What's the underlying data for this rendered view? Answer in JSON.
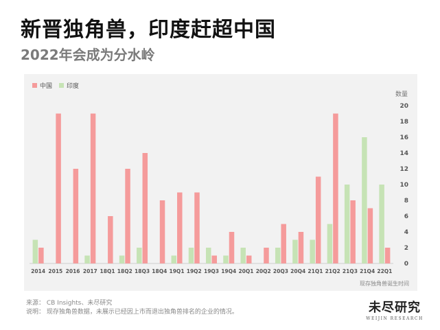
{
  "header": {
    "title": "新晋独角兽，印度赶超中国",
    "subtitle": "2022年会成为分水岭"
  },
  "chart_data": {
    "type": "bar",
    "ylabel": "数量",
    "xlabel": "现存独角兽诞生时间",
    "ylim": [
      0,
      20
    ],
    "yticks": [
      0,
      2,
      4,
      6,
      8,
      10,
      12,
      14,
      16,
      18,
      20
    ],
    "grid": false,
    "legend_position": "top-left",
    "categories": [
      "2014",
      "2015",
      "2016",
      "2017",
      "18Q1",
      "18Q2",
      "18Q3",
      "18Q4",
      "19Q1",
      "19Q2",
      "19Q3",
      "19Q4",
      "20Q1",
      "20Q2",
      "20Q3",
      "20Q4",
      "21Q1",
      "21Q2",
      "21Q3",
      "21Q4",
      "22Q1"
    ],
    "series": [
      {
        "name": "中国",
        "color": "#f59b9b",
        "values": [
          2,
          19,
          12,
          19,
          6,
          12,
          14,
          8,
          9,
          9,
          1,
          4,
          1,
          2,
          5,
          4,
          11,
          19,
          8,
          7,
          2
        ]
      },
      {
        "name": "印度",
        "color": "#c6e3b5",
        "values": [
          3,
          0,
          0,
          1,
          0,
          1,
          2,
          0,
          1,
          2,
          2,
          1,
          2,
          0,
          2,
          3,
          3,
          5,
          10,
          16,
          10
        ]
      }
    ]
  },
  "footer": {
    "source": "来源：  CB Insights、未尽研究",
    "note": "说明：  现存独角兽数据，未展示已经因上市而退出独角兽排名的企业的情况。"
  },
  "logo": {
    "main": "未尽研究",
    "sub": "WEIJIN RESEARCH"
  }
}
